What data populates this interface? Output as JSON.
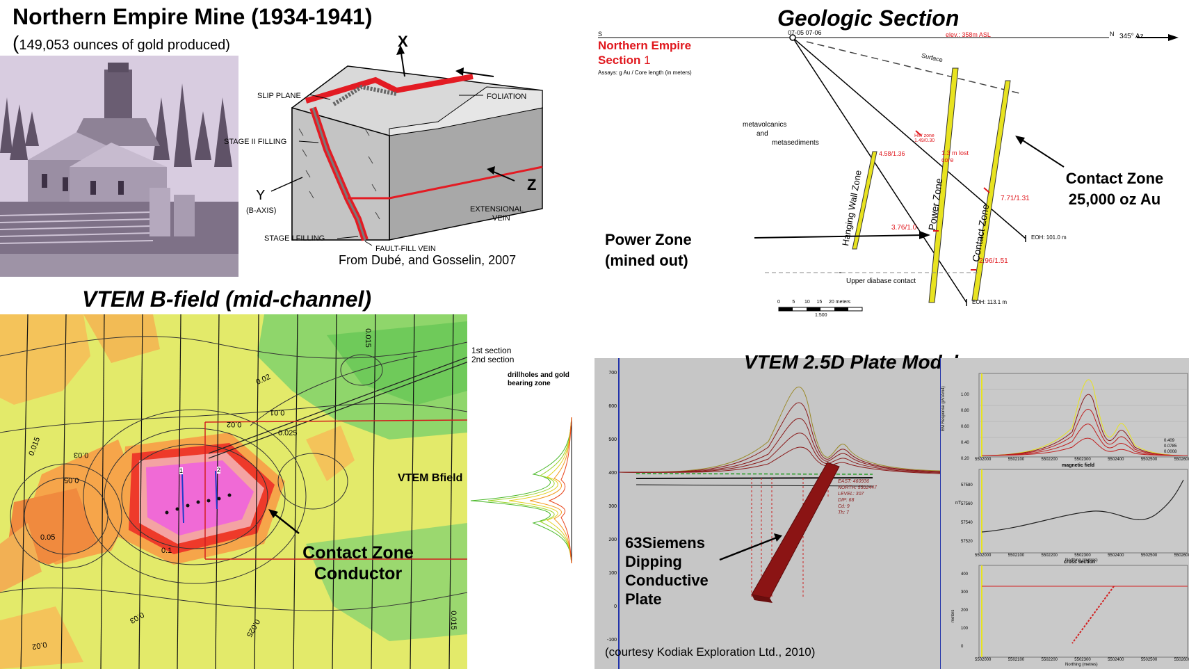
{
  "mine": {
    "title": "Northern Empire Mine (1934-1941)",
    "subtitle_paren": "(",
    "subtitle": "149,053 ounces of gold produced)"
  },
  "block": {
    "x": "X",
    "y": "Y",
    "y_sub": "(B-AXIS)",
    "z": "Z",
    "slip_plane": "SLIP PLANE",
    "foliation": "FOLIATION",
    "stage2": "STAGE II FILLING",
    "stage1": "STAGE I FILLING",
    "extensional": "EXTENSIONAL",
    "vein": "VEIN",
    "faultfill": "FAULT-FILL VEIN",
    "credit": "From Dubé, and Gosselin, 2007"
  },
  "geo": {
    "title": "Geologic Section",
    "s": "S",
    "n": "N",
    "holes": "07-05 07-06",
    "elev": "elev.: 358m ASL",
    "az": "345° Az.",
    "section_title_1": "Northern Empire",
    "section_title_2": "Section",
    "section_num": "1",
    "assays": "Assays: g Au / Core length (in meters)",
    "surface": "Surface",
    "rock1": "metavolcanics",
    "rock2": "and",
    "rock3": "metasediments",
    "hw_zone": "Hanging Wall Zone",
    "power_zone": "Power Zone",
    "contact_zone": "Contact Zone",
    "assay1": "4.58/1.36",
    "assay2": "HW zone 1.49/0.30",
    "assay3": "1.3 m lost core",
    "assay4": "7.71/1.31",
    "assay5": "3.76/1.0",
    "assay6": "2.96/1.51",
    "eoh1": "EOH: 101.0 m",
    "eoh2": "EOH: 113.1 m",
    "diabase": "Upper diabase contact",
    "scale_ticks": [
      "0",
      "5",
      "10",
      "15",
      "20 meters"
    ],
    "scale_ratio": "1:500",
    "cz_label_1": "Contact Zone",
    "cz_label_2": "25,000 oz Au",
    "pz_label_1": "Power Zone",
    "pz_label_2": "(mined out)"
  },
  "bfield": {
    "title": "VTEM B-field (mid-channel)",
    "sec1": "1st section",
    "sec2": "2nd section",
    "legend": "drillholes and gold bearing zone",
    "vtem_bfield": "VTEM Bfield",
    "conductor_1": "Contact Zone",
    "conductor_2": "Conductor",
    "hole1": "1",
    "hole2": "2",
    "contours": [
      "0.015",
      "0.02",
      "0.01",
      "0.025",
      "0.02",
      "0.03",
      "0.05",
      "0.1",
      "0.05",
      "0.015",
      "0.03",
      "0.025",
      "0.015",
      "0.02"
    ]
  },
  "plate": {
    "title": "VTEM 2.5D Plate Model",
    "y_ticks": [
      "700",
      "600",
      "500",
      "400",
      "300",
      "200",
      "100",
      "0",
      "-100"
    ],
    "plate_info": [
      "EAST: 460936",
      "NORTH: 5502447",
      "LEVEL: 307",
      "DIP: 68",
      "Cd: 9",
      "Th: 7"
    ],
    "plate_label": "63Siemens Dipping Conductive Plate",
    "credit": "(courtesy Kodiak Exploration Ltd., 2010)",
    "em_ylabel": "EM Response (pV/Am4)",
    "em_ticks": [
      "1.00",
      "0.80",
      "0.60",
      "0.40",
      "0.20",
      "0.00"
    ],
    "em_vals": [
      "0.409",
      "0.0785",
      "0.0008"
    ],
    "northing_ticks": [
      "5502000",
      "5502100",
      "5502200",
      "5502300",
      "5502400",
      "5502500",
      "5502600"
    ],
    "northing_label": "Northing (metres)",
    "mag_title": "magnetic field",
    "mag_ylabel": "nT",
    "mag_ticks": [
      "57580",
      "57560",
      "57540",
      "57520"
    ],
    "xs_title": "cross section",
    "xs_ylabel": "meters",
    "xs_ticks": [
      "400",
      "300",
      "200",
      "100",
      "0",
      "-100"
    ]
  },
  "colors": {
    "red": "#e0161c",
    "vein_red": "#e31b23",
    "yellow_zone": "#e8e320",
    "map_yellow": "#e3ea6a",
    "map_orange": "#f6a54a",
    "map_magenta": "#f06ad6",
    "map_green": "#8fd66b"
  }
}
